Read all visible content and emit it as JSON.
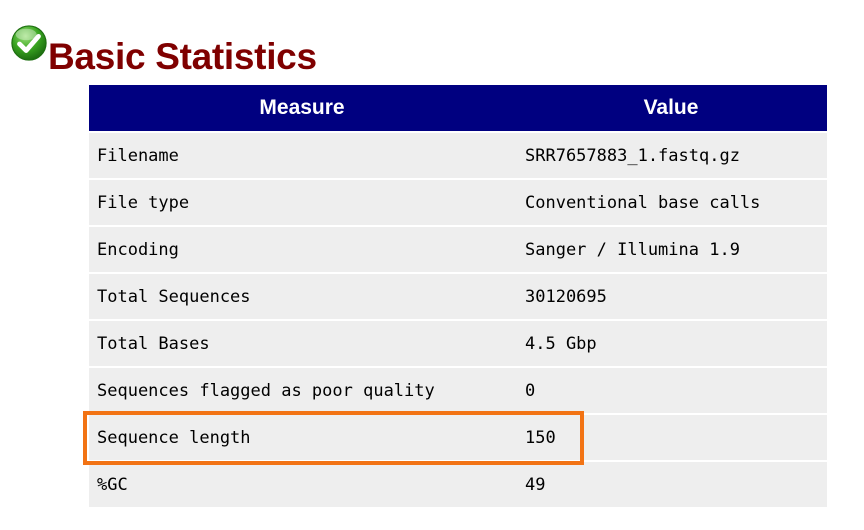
{
  "module": {
    "title": "Basic Statistics",
    "status_icon": "check-icon",
    "status_color": "#3aa521",
    "title_color": "#7f0000"
  },
  "table": {
    "headers": {
      "measure": "Measure",
      "value": "Value"
    },
    "header_bg": "#000080",
    "rows": [
      {
        "measure": "Filename",
        "value": "SRR7657883_1.fastq.gz"
      },
      {
        "measure": "File type",
        "value": "Conventional base calls"
      },
      {
        "measure": "Encoding",
        "value": "Sanger / Illumina 1.9"
      },
      {
        "measure": "Total Sequences",
        "value": "30120695"
      },
      {
        "measure": "Total Bases",
        "value": "4.5 Gbp"
      },
      {
        "measure": "Sequences flagged as poor quality",
        "value": "0"
      },
      {
        "measure": "Sequence length",
        "value": "150"
      },
      {
        "measure": "%GC",
        "value": "49"
      }
    ]
  },
  "annotation": {
    "highlighted_row": "Sequence length",
    "highlight_color": "#f27314"
  }
}
